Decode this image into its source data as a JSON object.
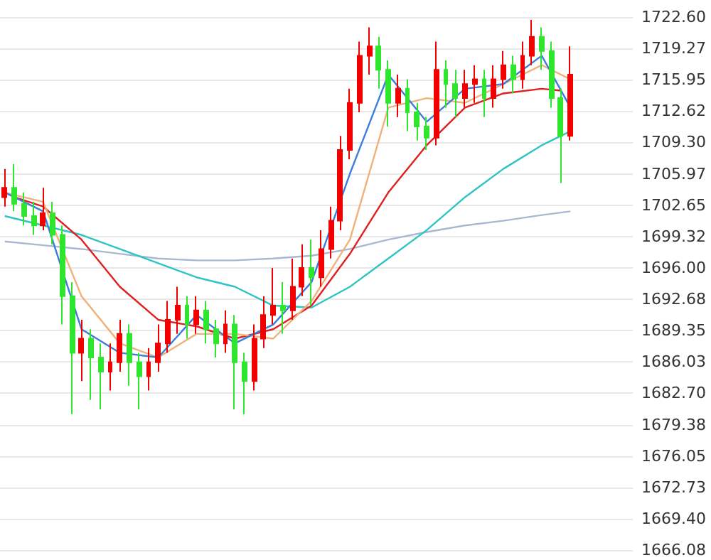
{
  "chart_data": {
    "type": "candlestick",
    "categories": [
      null,
      null,
      null,
      null,
      null,
      null,
      null,
      null,
      null,
      null,
      null,
      null,
      null,
      null,
      null,
      null,
      null,
      null,
      null,
      null,
      null,
      null,
      null,
      null,
      null,
      null,
      null,
      null,
      null,
      null,
      null,
      null,
      null,
      null,
      null,
      null,
      null,
      null,
      null,
      null,
      null,
      null,
      null,
      null,
      null,
      null,
      null,
      null,
      null,
      null,
      null,
      null,
      null,
      null,
      null,
      null,
      null,
      null,
      null,
      null,
      null,
      null,
      null,
      null,
      null,
      null
    ],
    "ohlc": [
      [
        1703.5,
        1706.5,
        1702.5,
        1704.5
      ],
      [
        1704.5,
        1707,
        1702,
        1702.8
      ],
      [
        1702.8,
        1704,
        1700.5,
        1701.5
      ],
      [
        1701.5,
        1703,
        1699.5,
        1700.5
      ],
      [
        1700.5,
        1704.5,
        1700,
        1701.8
      ],
      [
        1701.8,
        1703,
        1698.5,
        1699.5
      ],
      [
        1699.5,
        1700.5,
        1690,
        1693
      ],
      [
        1693,
        1694.5,
        1680.5,
        1687
      ],
      [
        1687,
        1690.5,
        1684,
        1688.5
      ],
      [
        1688.5,
        1689.5,
        1682,
        1686.5
      ],
      [
        1686.5,
        1688,
        1681,
        1685
      ],
      [
        1685,
        1688,
        1683,
        1686
      ],
      [
        1686,
        1690.5,
        1685,
        1689
      ],
      [
        1689,
        1690,
        1683.5,
        1686
      ],
      [
        1686,
        1687,
        1681,
        1684.5
      ],
      [
        1684.5,
        1687.5,
        1683,
        1686
      ],
      [
        1686,
        1690,
        1685,
        1688
      ],
      [
        1688,
        1692.5,
        1687,
        1690.5
      ],
      [
        1690.5,
        1694,
        1689,
        1692
      ],
      [
        1692,
        1693,
        1688.5,
        1690
      ],
      [
        1690,
        1693,
        1689,
        1691.5
      ],
      [
        1691.5,
        1692.5,
        1688,
        1689.5
      ],
      [
        1689.5,
        1690.5,
        1686.5,
        1688
      ],
      [
        1688,
        1691.5,
        1687,
        1690
      ],
      [
        1690,
        1691,
        1681,
        1686
      ],
      [
        1686,
        1687,
        1680.5,
        1684
      ],
      [
        1684,
        1690,
        1683,
        1688.5
      ],
      [
        1688.5,
        1693,
        1687.5,
        1691
      ],
      [
        1691,
        1696,
        1690,
        1692
      ],
      [
        1692,
        1694.5,
        1689,
        1691.5
      ],
      [
        1691.5,
        1697,
        1690.5,
        1694
      ],
      [
        1694,
        1698.5,
        1693,
        1696
      ],
      [
        1696,
        1699,
        1692,
        1695
      ],
      [
        1695,
        1700,
        1694,
        1698
      ],
      [
        1698,
        1702.5,
        1697,
        1701
      ],
      [
        1701,
        1710,
        1700,
        1708.5
      ],
      [
        1708.5,
        1715,
        1707.5,
        1713.5
      ],
      [
        1713.5,
        1720,
        1712.5,
        1718.5
      ],
      [
        1718.5,
        1721.5,
        1716.5,
        1719.5
      ],
      [
        1719.5,
        1720.5,
        1715,
        1717
      ],
      [
        1717,
        1718,
        1711,
        1713.5
      ],
      [
        1713.5,
        1716.5,
        1712,
        1715
      ],
      [
        1715,
        1716,
        1710.5,
        1712.5
      ],
      [
        1712.5,
        1713.5,
        1709.5,
        1711
      ],
      [
        1711,
        1712,
        1708.5,
        1709.8
      ],
      [
        1709.8,
        1720,
        1709,
        1717
      ],
      [
        1717,
        1718,
        1713,
        1715.5
      ],
      [
        1715.5,
        1717,
        1712,
        1714
      ],
      [
        1714,
        1717,
        1713,
        1715.5
      ],
      [
        1715.5,
        1717.5,
        1713.5,
        1716
      ],
      [
        1716,
        1717,
        1712,
        1714
      ],
      [
        1714,
        1717.5,
        1713,
        1716
      ],
      [
        1716,
        1719,
        1715,
        1717.5
      ],
      [
        1717.5,
        1718.5,
        1714.5,
        1716
      ],
      [
        1716,
        1720,
        1715,
        1718.5
      ],
      [
        1718.5,
        1722.3,
        1717.5,
        1720.5
      ],
      [
        1720.5,
        1721.5,
        1717,
        1719
      ],
      [
        1719,
        1720,
        1713,
        1714
      ],
      [
        1714,
        1715,
        1705,
        1710
      ],
      [
        1710,
        1719.5,
        1709.5,
        1716.5
      ],
      null,
      null,
      null,
      null,
      null,
      null
    ],
    "colors": [
      "#f20000",
      "#2ee62e",
      "#2ee62e",
      "#2ee62e",
      "#f20000",
      "#2ee62e",
      "#2ee62e",
      "#2ee62e",
      "#f20000",
      "#2ee62e",
      "#2ee62e",
      "#f20000",
      "#f20000",
      "#2ee62e",
      "#2ee62e",
      "#f20000",
      "#f20000",
      "#f20000",
      "#f20000",
      "#2ee62e",
      "#f20000",
      "#2ee62e",
      "#2ee62e",
      "#f20000",
      "#2ee62e",
      "#2ee62e",
      "#f20000",
      "#f20000",
      "#f20000",
      "#2ee62e",
      "#f20000",
      "#f20000",
      "#2ee62e",
      "#f20000",
      "#f20000",
      "#f20000",
      "#f20000",
      "#f20000",
      "#f20000",
      "#2ee62e",
      "#2ee62e",
      "#f20000",
      "#2ee62e",
      "#2ee62e",
      "#2ee62e",
      "#f20000",
      "#2ee62e",
      "#2ee62e",
      "#f20000",
      "#f20000",
      "#2ee62e",
      "#f20000",
      "#f20000",
      "#2ee62e",
      "#f20000",
      "#f20000",
      "#2ee62e",
      "#2ee62e",
      "#2ee62e",
      "#f20000",
      null,
      null,
      null,
      null,
      null,
      null
    ],
    "series": [
      {
        "type": "line",
        "color": "#a9b8d0",
        "values": [
          1698.8,
          null,
          null,
          null,
          1698.4,
          null,
          null,
          null,
          1698,
          null,
          null,
          null,
          1697.5,
          null,
          null,
          null,
          1697,
          null,
          null,
          null,
          1696.8,
          null,
          null,
          null,
          1696.8,
          null,
          null,
          null,
          1697,
          null,
          null,
          null,
          1697.3,
          null,
          null,
          null,
          1698,
          null,
          null,
          null,
          1699,
          null,
          null,
          null,
          1699.8,
          null,
          null,
          null,
          1700.5,
          null,
          null,
          null,
          1701,
          null,
          null,
          null,
          1701.6,
          null,
          null,
          1702,
          null,
          null,
          null,
          null,
          null,
          null
        ]
      },
      {
        "type": "line",
        "color": "#2ec4c4",
        "values": [
          1701.5,
          null,
          null,
          null,
          1700.5,
          null,
          null,
          null,
          1699.5,
          null,
          null,
          null,
          1698,
          null,
          null,
          null,
          1696.5,
          null,
          null,
          null,
          1695,
          null,
          null,
          null,
          1694,
          null,
          null,
          null,
          1692,
          null,
          null,
          null,
          1691.8,
          null,
          null,
          null,
          1694,
          null,
          null,
          null,
          1697,
          null,
          null,
          null,
          1700,
          null,
          null,
          null,
          1703.5,
          null,
          null,
          null,
          1706.5,
          null,
          null,
          null,
          1709,
          null,
          null,
          1710.5,
          null,
          null,
          null,
          null,
          null,
          null
        ]
      },
      {
        "type": "line",
        "color": "#e02020",
        "values": [
          null,
          1703.5,
          null,
          null,
          1702.5,
          null,
          null,
          null,
          1699,
          null,
          null,
          null,
          1694,
          null,
          null,
          null,
          1690.5,
          null,
          null,
          null,
          1689.8,
          null,
          null,
          null,
          1688.5,
          null,
          null,
          null,
          1689.5,
          null,
          null,
          null,
          1692,
          null,
          null,
          null,
          1697.5,
          null,
          null,
          null,
          1704,
          null,
          null,
          null,
          1709,
          null,
          null,
          null,
          1713,
          null,
          null,
          null,
          1714.5,
          null,
          null,
          null,
          1715,
          null,
          1714.8,
          null,
          null,
          null,
          null,
          null,
          null,
          null
        ]
      },
      {
        "type": "line",
        "color": "#f0b27a",
        "values": [
          1704,
          null,
          null,
          null,
          1703,
          null,
          null,
          null,
          1693,
          null,
          null,
          null,
          1688,
          null,
          null,
          null,
          1686.5,
          null,
          null,
          null,
          1689,
          null,
          null,
          null,
          1689,
          null,
          null,
          null,
          1688.5,
          null,
          null,
          null,
          1692.5,
          null,
          null,
          null,
          1699,
          null,
          null,
          null,
          1713,
          null,
          null,
          null,
          1714,
          null,
          null,
          null,
          1713.5,
          null,
          null,
          null,
          1715.5,
          null,
          null,
          null,
          1717.5,
          null,
          null,
          1716,
          null,
          null,
          null,
          null,
          null,
          null
        ]
      },
      {
        "type": "line",
        "color": "#3a7ddc",
        "values": [
          1704,
          null,
          null,
          null,
          1702,
          null,
          null,
          null,
          1689.5,
          null,
          null,
          null,
          1687,
          null,
          null,
          null,
          1686.5,
          null,
          null,
          null,
          1691,
          null,
          null,
          null,
          1688,
          null,
          null,
          null,
          1690,
          null,
          null,
          null,
          1694.5,
          null,
          null,
          null,
          1706,
          null,
          null,
          null,
          1716.5,
          null,
          null,
          null,
          1711.5,
          null,
          null,
          null,
          1715,
          null,
          null,
          null,
          1715.5,
          null,
          null,
          null,
          1718.5,
          null,
          null,
          1713,
          null,
          null,
          null,
          null,
          null,
          null
        ]
      }
    ],
    "ylim": [
      1666.08,
      1722.6
    ],
    "yticks": [
      {
        "value": 1666.08,
        "label": "1666.08"
      },
      {
        "value": 1669.4,
        "label": "1669.40"
      },
      {
        "value": 1672.73,
        "label": "1672.73"
      },
      {
        "value": 1676.05,
        "label": "1676.05"
      },
      {
        "value": 1679.38,
        "label": "1679.38"
      },
      {
        "value": 1682.7,
        "label": "1682.70"
      },
      {
        "value": 1686.03,
        "label": "1686.03"
      },
      {
        "value": 1689.35,
        "label": "1689.35"
      },
      {
        "value": 1692.68,
        "label": "1692.68"
      },
      {
        "value": 1696,
        "label": "1696.00"
      },
      {
        "value": 1699.32,
        "label": "1699.32"
      },
      {
        "value": 1702.65,
        "label": "1702.65"
      },
      {
        "value": 1705.97,
        "label": "1705.97"
      },
      {
        "value": 1709.3,
        "label": "1709.30"
      },
      {
        "value": 1712.62,
        "label": "1712.62"
      },
      {
        "value": 1715.95,
        "label": "1715.95"
      },
      {
        "value": 1719.27,
        "label": "1719.27"
      },
      {
        "value": 1722.6,
        "label": "1722.60"
      }
    ],
    "grid": "y",
    "tick_labels": "y"
  }
}
